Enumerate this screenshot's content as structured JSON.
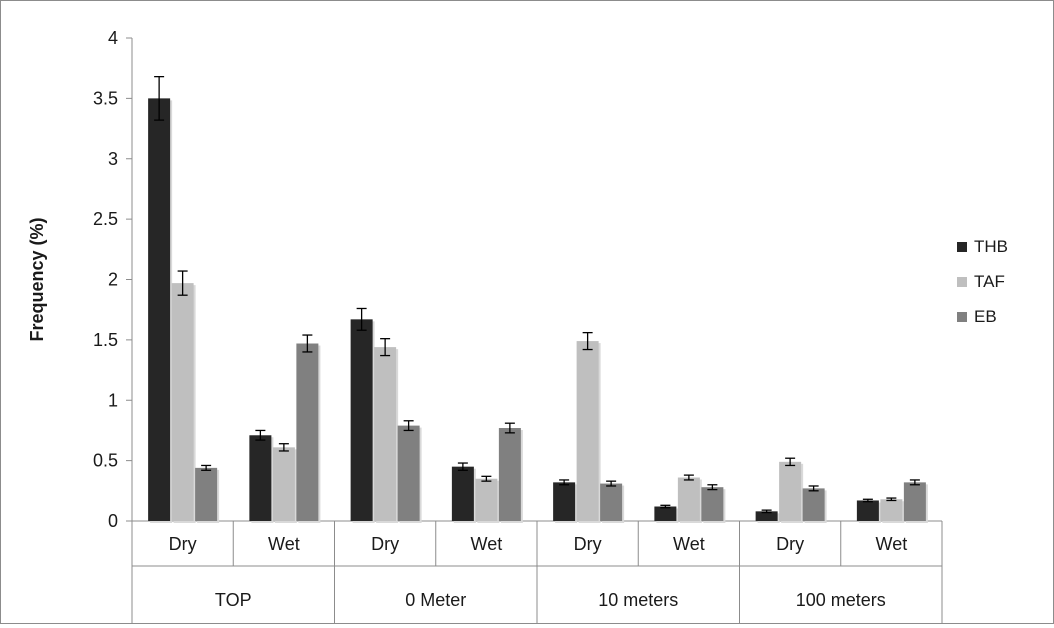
{
  "chart_data": {
    "type": "bar",
    "title": "",
    "xlabel": "",
    "ylabel": "Frequency (%)",
    "ylim": [
      0,
      4
    ],
    "yticks": [
      0,
      0.5,
      1,
      1.5,
      2,
      2.5,
      3,
      3.5,
      4
    ],
    "ytick_labels": [
      "0",
      "0.5",
      "1",
      "1.5",
      "2",
      "2.5",
      "3",
      "3.5",
      "4"
    ],
    "grid": false,
    "legend_position": "right",
    "groups": [
      {
        "label": "TOP",
        "categories": [
          "Dry",
          "Wet"
        ]
      },
      {
        "label": "0 Meter",
        "categories": [
          "Dry",
          "Wet"
        ]
      },
      {
        "label": "10 meters",
        "categories": [
          "Dry",
          "Wet"
        ]
      },
      {
        "label": "100 meters",
        "categories": [
          "Dry",
          "Wet"
        ]
      }
    ],
    "categories": [
      "Dry",
      "Wet",
      "Dry",
      "Wet",
      "Dry",
      "Wet",
      "Dry",
      "Wet"
    ],
    "series": [
      {
        "name": "THB",
        "color": "#262626",
        "values": [
          3.5,
          0.71,
          1.67,
          0.45,
          0.32,
          0.12,
          0.08,
          0.17
        ],
        "errors": [
          0.18,
          0.04,
          0.09,
          0.03,
          0.02,
          0.01,
          0.01,
          0.01
        ]
      },
      {
        "name": "TAF",
        "color": "#bfbfbf",
        "values": [
          1.97,
          0.61,
          1.44,
          0.35,
          1.49,
          0.36,
          0.49,
          0.18
        ],
        "errors": [
          0.1,
          0.03,
          0.07,
          0.02,
          0.07,
          0.02,
          0.03,
          0.01
        ]
      },
      {
        "name": "EB",
        "color": "#808080",
        "values": [
          0.44,
          1.47,
          0.79,
          0.77,
          0.31,
          0.28,
          0.27,
          0.32
        ],
        "errors": [
          0.02,
          0.07,
          0.04,
          0.04,
          0.02,
          0.02,
          0.02,
          0.02
        ]
      }
    ]
  }
}
